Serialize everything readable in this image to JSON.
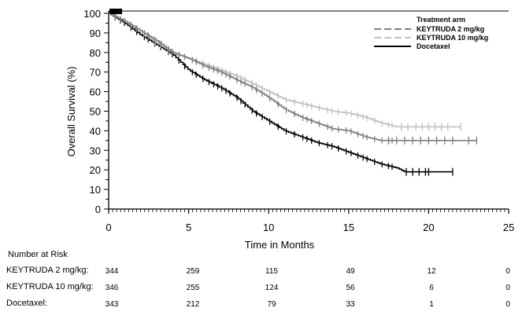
{
  "chart_data": {
    "type": "line",
    "subtype": "kaplan-meier",
    "xlabel": "Time in Months",
    "ylabel": "Overall Survival (%)",
    "xlim": [
      0,
      25
    ],
    "ylim": [
      0,
      100
    ],
    "xticks": [
      0,
      5,
      10,
      15,
      20,
      25
    ],
    "yticks": [
      0,
      10,
      20,
      30,
      40,
      50,
      60,
      70,
      80,
      90,
      100
    ],
    "grid": false,
    "legend": {
      "title": "Treatment arm",
      "placement": "top-right"
    },
    "series": [
      {
        "name": "KEYTRUDA 2 mg/kg",
        "color": "#7f7f7f",
        "dash": true,
        "x": [
          0,
          1,
          2,
          3,
          4,
          5,
          6,
          7,
          8,
          9,
          10,
          11,
          12,
          13,
          14,
          15,
          16,
          17,
          23
        ],
        "y": [
          100,
          96,
          91,
          86,
          80,
          77,
          73,
          70,
          66,
          62,
          57,
          51,
          47,
          44,
          41,
          40,
          37,
          35,
          35
        ],
        "censor": [
          17.5,
          18,
          18.5,
          19,
          19.5,
          20,
          20.5,
          21,
          21.5,
          22.5,
          23
        ]
      },
      {
        "name": "KEYTRUDA 10 mg/kg",
        "color": "#c0c0c0",
        "dash": true,
        "x": [
          0,
          1,
          2,
          3,
          4,
          5,
          6,
          7,
          8,
          9,
          10,
          11,
          12,
          13,
          14,
          15,
          16,
          17,
          18,
          22
        ],
        "y": [
          100,
          96,
          91,
          85,
          80,
          77,
          74,
          71,
          68,
          64,
          60,
          56,
          54,
          52,
          50,
          49,
          47,
          44,
          42,
          42
        ],
        "censor": [
          18.3,
          18.7,
          19.2,
          19.6,
          20,
          20.4,
          20.8,
          21.2,
          22
        ]
      },
      {
        "name": "Docetaxel",
        "color": "#000000",
        "dash": false,
        "x": [
          0,
          1,
          2,
          3,
          4,
          5,
          6,
          7,
          8,
          9,
          10,
          11,
          12,
          13,
          14,
          15,
          16,
          17,
          18,
          18.5,
          21.5
        ],
        "y": [
          100,
          95,
          89,
          84,
          79,
          71,
          66,
          62,
          57,
          50,
          45,
          40,
          37,
          34,
          32,
          29,
          26,
          23,
          21,
          19,
          19
        ],
        "censor": [
          18.6,
          19,
          19.4,
          19.8,
          20,
          21.5
        ]
      }
    ],
    "number_at_risk": {
      "title": "Number at Risk",
      "rows": [
        {
          "label": "KEYTRUDA 2 mg/kg:",
          "values": [
            344,
            259,
            115,
            49,
            12,
            0
          ]
        },
        {
          "label": "KEYTRUDA 10 mg/kg:",
          "values": [
            346,
            255,
            124,
            56,
            6,
            0
          ]
        },
        {
          "label": "Docetaxel:",
          "values": [
            343,
            212,
            79,
            33,
            1,
            0
          ]
        }
      ]
    }
  }
}
